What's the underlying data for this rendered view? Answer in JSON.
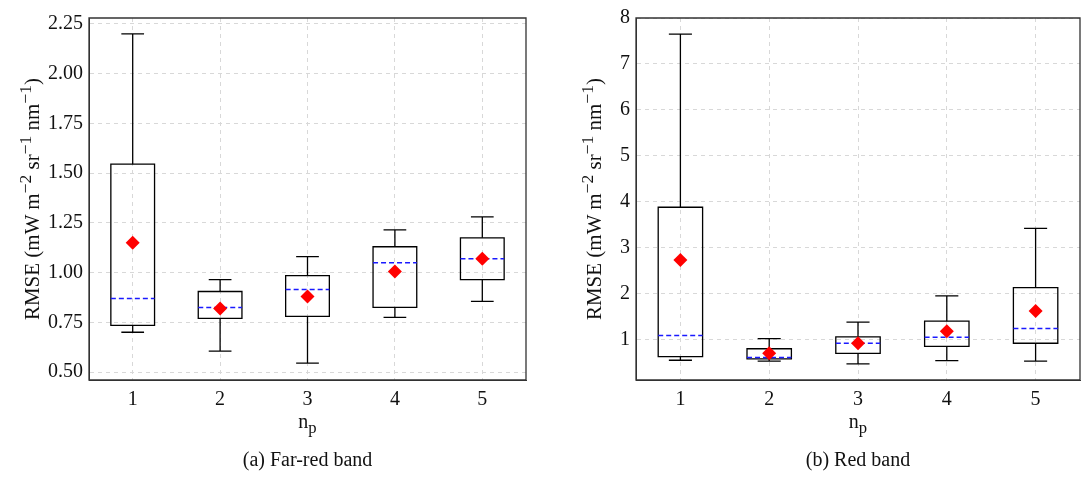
{
  "chart_data": [
    {
      "type": "box",
      "title": "(a) Far-red band",
      "xlabel": "n$_{p}$",
      "ylabel": "RMSE (mW m$^{−2}$ sr$^{−1}$ nm$^{−1}$)",
      "categories": [
        "1",
        "2",
        "3",
        "4",
        "5"
      ],
      "ylim": [
        0.46,
        2.28
      ],
      "yticks": [
        {
          "value": 0.5,
          "label": "0.50"
        },
        {
          "value": 0.75,
          "label": "0.75"
        },
        {
          "value": 1,
          "label": "1.00"
        },
        {
          "value": 1.25,
          "label": "1.25"
        },
        {
          "value": 1.5,
          "label": "1.50"
        },
        {
          "value": 1.75,
          "label": "1.75"
        },
        {
          "value": 2,
          "label": "2.00"
        },
        {
          "value": 2.25,
          "label": "2.25"
        }
      ],
      "grid": true,
      "legend": false,
      "series": [
        {
          "color": "#000000",
          "boxes": [
            {
              "low": 0.7,
              "q1": 0.735,
              "median": 0.87,
              "q3": 1.545,
              "high": 2.2,
              "mean": 1.15
            },
            {
              "low": 0.605,
              "q1": 0.77,
              "median": 0.825,
              "q3": 0.905,
              "high": 0.965,
              "mean": 0.82
            },
            {
              "low": 0.545,
              "q1": 0.78,
              "median": 0.915,
              "q3": 0.985,
              "high": 1.08,
              "mean": 0.88
            },
            {
              "low": 0.775,
              "q1": 0.825,
              "median": 1.05,
              "q3": 1.13,
              "high": 1.215,
              "mean": 1.005
            },
            {
              "low": 0.855,
              "q1": 0.965,
              "median": 1.07,
              "q3": 1.175,
              "high": 1.28,
              "mean": 1.07
            }
          ]
        }
      ]
    },
    {
      "type": "box",
      "title": "(b) Red band",
      "xlabel": "n$_{p}$",
      "ylabel": "RMSE (mW m$^{−2}$ sr$^{−1}$ nm$^{−1}$)",
      "categories": [
        "1",
        "2",
        "3",
        "4",
        "5"
      ],
      "ylim": [
        0.12,
        8
      ],
      "yticks": [
        1,
        2,
        3,
        4,
        5,
        6,
        7,
        8
      ],
      "grid": true,
      "legend": false,
      "series": [
        {
          "color": "#000000",
          "boxes": [
            {
              "low": 0.55,
              "q1": 0.63,
              "median": 1.09,
              "q3": 3.88,
              "high": 7.65,
              "mean": 2.73
            },
            {
              "low": 0.53,
              "q1": 0.58,
              "median": 0.61,
              "q3": 0.8,
              "high": 1.02,
              "mean": 0.7
            },
            {
              "low": 0.47,
              "q1": 0.7,
              "median": 0.92,
              "q3": 1.06,
              "high": 1.38,
              "mean": 0.92
            },
            {
              "low": 0.54,
              "q1": 0.85,
              "median": 1.05,
              "q3": 1.4,
              "high": 1.95,
              "mean": 1.18
            },
            {
              "low": 0.53,
              "q1": 0.92,
              "median": 1.24,
              "q3": 2.13,
              "high": 3.42,
              "mean": 1.62
            }
          ]
        }
      ]
    }
  ]
}
